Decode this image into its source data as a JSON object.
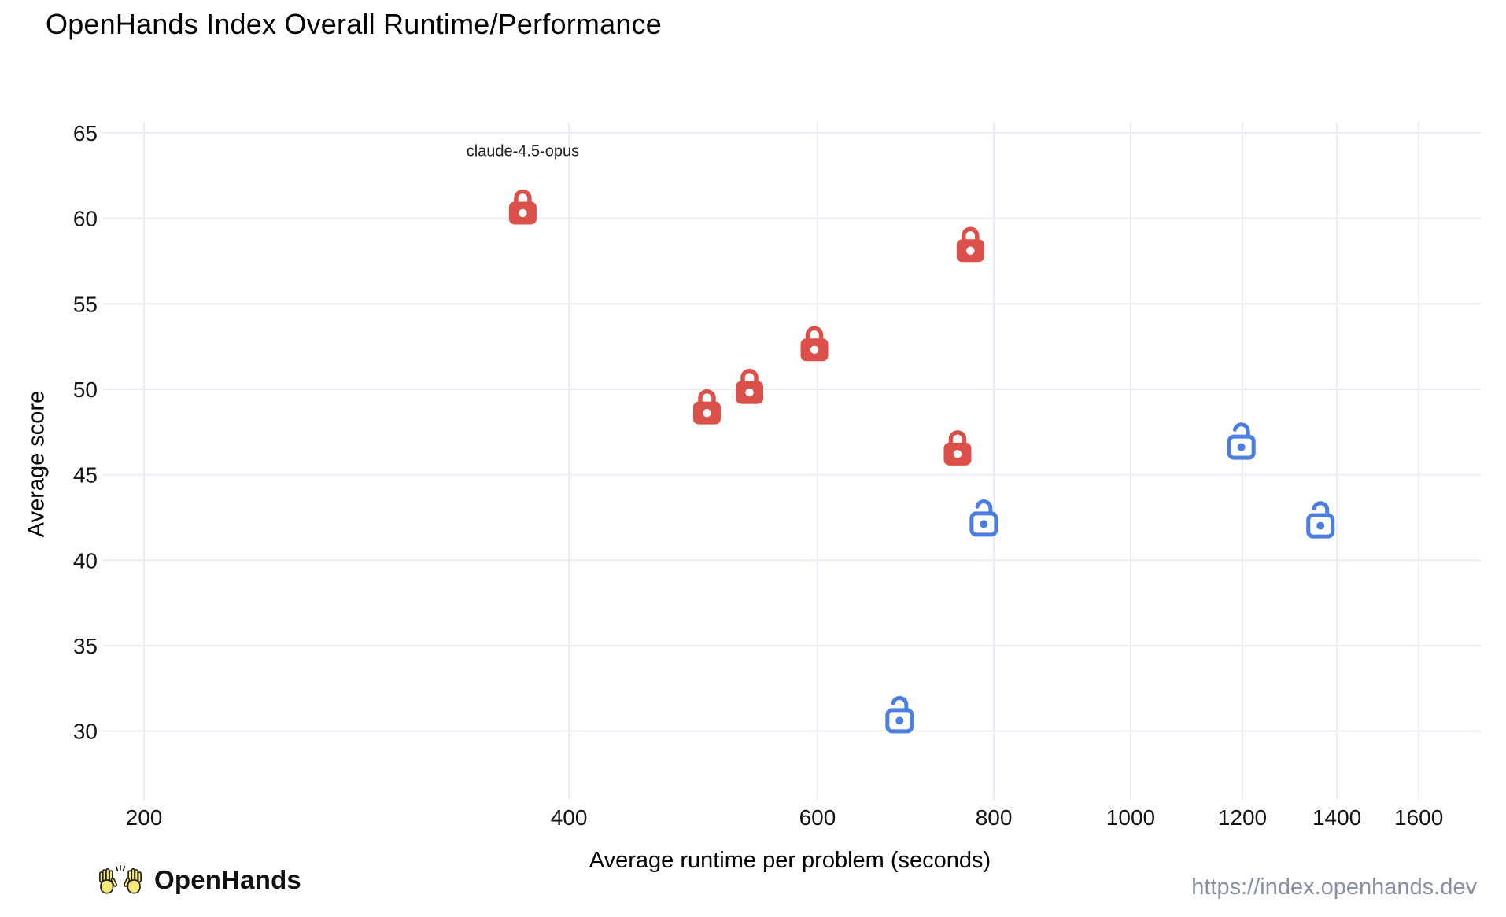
{
  "chart_data": {
    "type": "scatter",
    "title": "OpenHands Index Overall Runtime/Performance",
    "xlabel": "Average runtime per problem (seconds)",
    "ylabel": "Average score",
    "x_scale": "log",
    "x_ticks": [
      200,
      400,
      600,
      800,
      1000,
      1200,
      1400,
      1600
    ],
    "y_ticks": [
      30,
      35,
      40,
      45,
      50,
      55,
      60,
      65
    ],
    "xlim": [
      187,
      1770
    ],
    "ylim": [
      26,
      65.6
    ],
    "grid": true,
    "legend": false,
    "grid_color": "#e8edf6",
    "series": [
      {
        "name": "closed-models",
        "marker": "closed-lock",
        "color": "#db5149",
        "points": [
          {
            "x": 371,
            "y": 60.7,
            "label": "claude-4.5-opus"
          },
          {
            "x": 770,
            "y": 58.5
          },
          {
            "x": 597,
            "y": 52.7
          },
          {
            "x": 537,
            "y": 50.2
          },
          {
            "x": 501,
            "y": 49.0
          },
          {
            "x": 754,
            "y": 46.6
          }
        ]
      },
      {
        "name": "open-models",
        "marker": "open-lock",
        "color": "#4b7ee0",
        "points": [
          {
            "x": 1198,
            "y": 47.0
          },
          {
            "x": 787,
            "y": 42.5
          },
          {
            "x": 1363,
            "y": 42.4
          },
          {
            "x": 686,
            "y": 31.0
          }
        ]
      }
    ]
  },
  "footer": {
    "brand": "OpenHands",
    "url": "https://index.openhands.dev"
  }
}
